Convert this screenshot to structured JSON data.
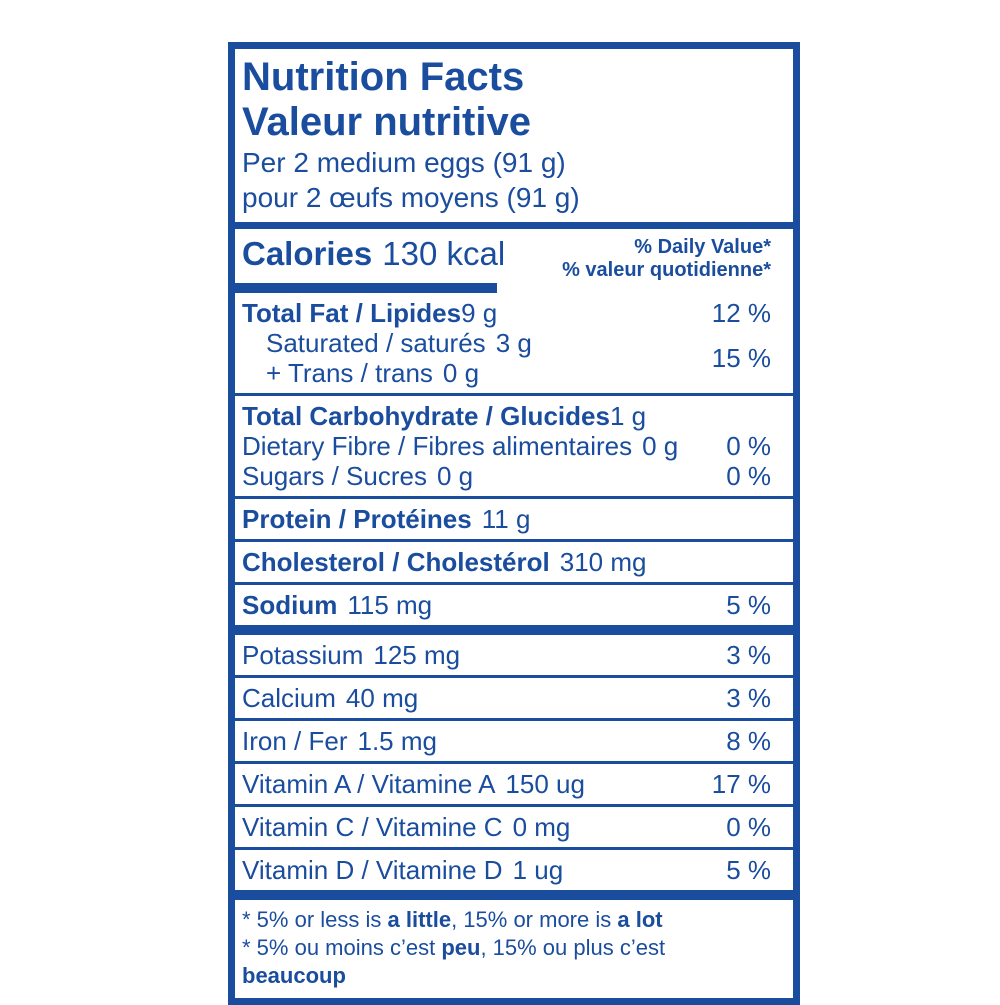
{
  "colors": {
    "blue": "#1a4d9e",
    "background": "#ffffff"
  },
  "header": {
    "title_en": "Nutrition Facts",
    "title_fr": "Valeur nutritive",
    "serving_en": "Per 2 medium eggs (91 g)",
    "serving_fr": "pour 2 œufs moyens (91 g)"
  },
  "calories": {
    "label": "Calories",
    "value": "130 kcal"
  },
  "daily_value_header": {
    "en": "% Daily Value*",
    "fr": "% valeur quotidienne*"
  },
  "rows": {
    "fat": {
      "name": "Total Fat / Lipides",
      "amount": "9 g",
      "dv": "12 %"
    },
    "saturated": {
      "name": "Saturated / saturés",
      "amount": "3 g"
    },
    "trans": {
      "name": "+ Trans / trans",
      "amount": "0 g"
    },
    "saturated_trans_dv": "15 %",
    "carbohydrate": {
      "name": "Total Carbohydrate / Glucides",
      "amount": "1 g"
    },
    "fibre": {
      "name": "Dietary Fibre / Fibres alimentaires",
      "amount": "0 g",
      "dv": "0 %"
    },
    "sugars": {
      "name": "Sugars / Sucres",
      "amount": "0 g",
      "dv": "0 %"
    },
    "protein": {
      "name": "Protein / Protéines",
      "amount": "11 g"
    },
    "cholesterol": {
      "name": "Cholesterol / Cholestérol",
      "amount": "310 mg"
    },
    "sodium": {
      "name": "Sodium",
      "amount": "115 mg",
      "dv": "5 %"
    },
    "potassium": {
      "name": "Potassium",
      "amount": "125 mg",
      "dv": "3 %"
    },
    "calcium": {
      "name": "Calcium",
      "amount": "40 mg",
      "dv": "3 %"
    },
    "iron": {
      "name": "Iron / Fer",
      "amount": "1.5 mg",
      "dv": "8 %"
    },
    "vitamin_a": {
      "name": "Vitamin A / Vitamine A",
      "amount": "150 ug",
      "dv": "17 %"
    },
    "vitamin_c": {
      "name": "Vitamin C / Vitamine C",
      "amount": "0 mg",
      "dv": "0 %"
    },
    "vitamin_d": {
      "name": "Vitamin D / Vitamine D",
      "amount": "1 ug",
      "dv": "5 %"
    }
  },
  "footnote": {
    "en": {
      "prefix": "* 5% or less is ",
      "bold1": "a little",
      "middle": ", 15% or more is ",
      "bold2": "a lot"
    },
    "fr": {
      "prefix": "* 5% ou moins c’est ",
      "bold1": "peu",
      "middle": ", 15% ou plus c’est ",
      "bold2": "beaucoup"
    }
  }
}
